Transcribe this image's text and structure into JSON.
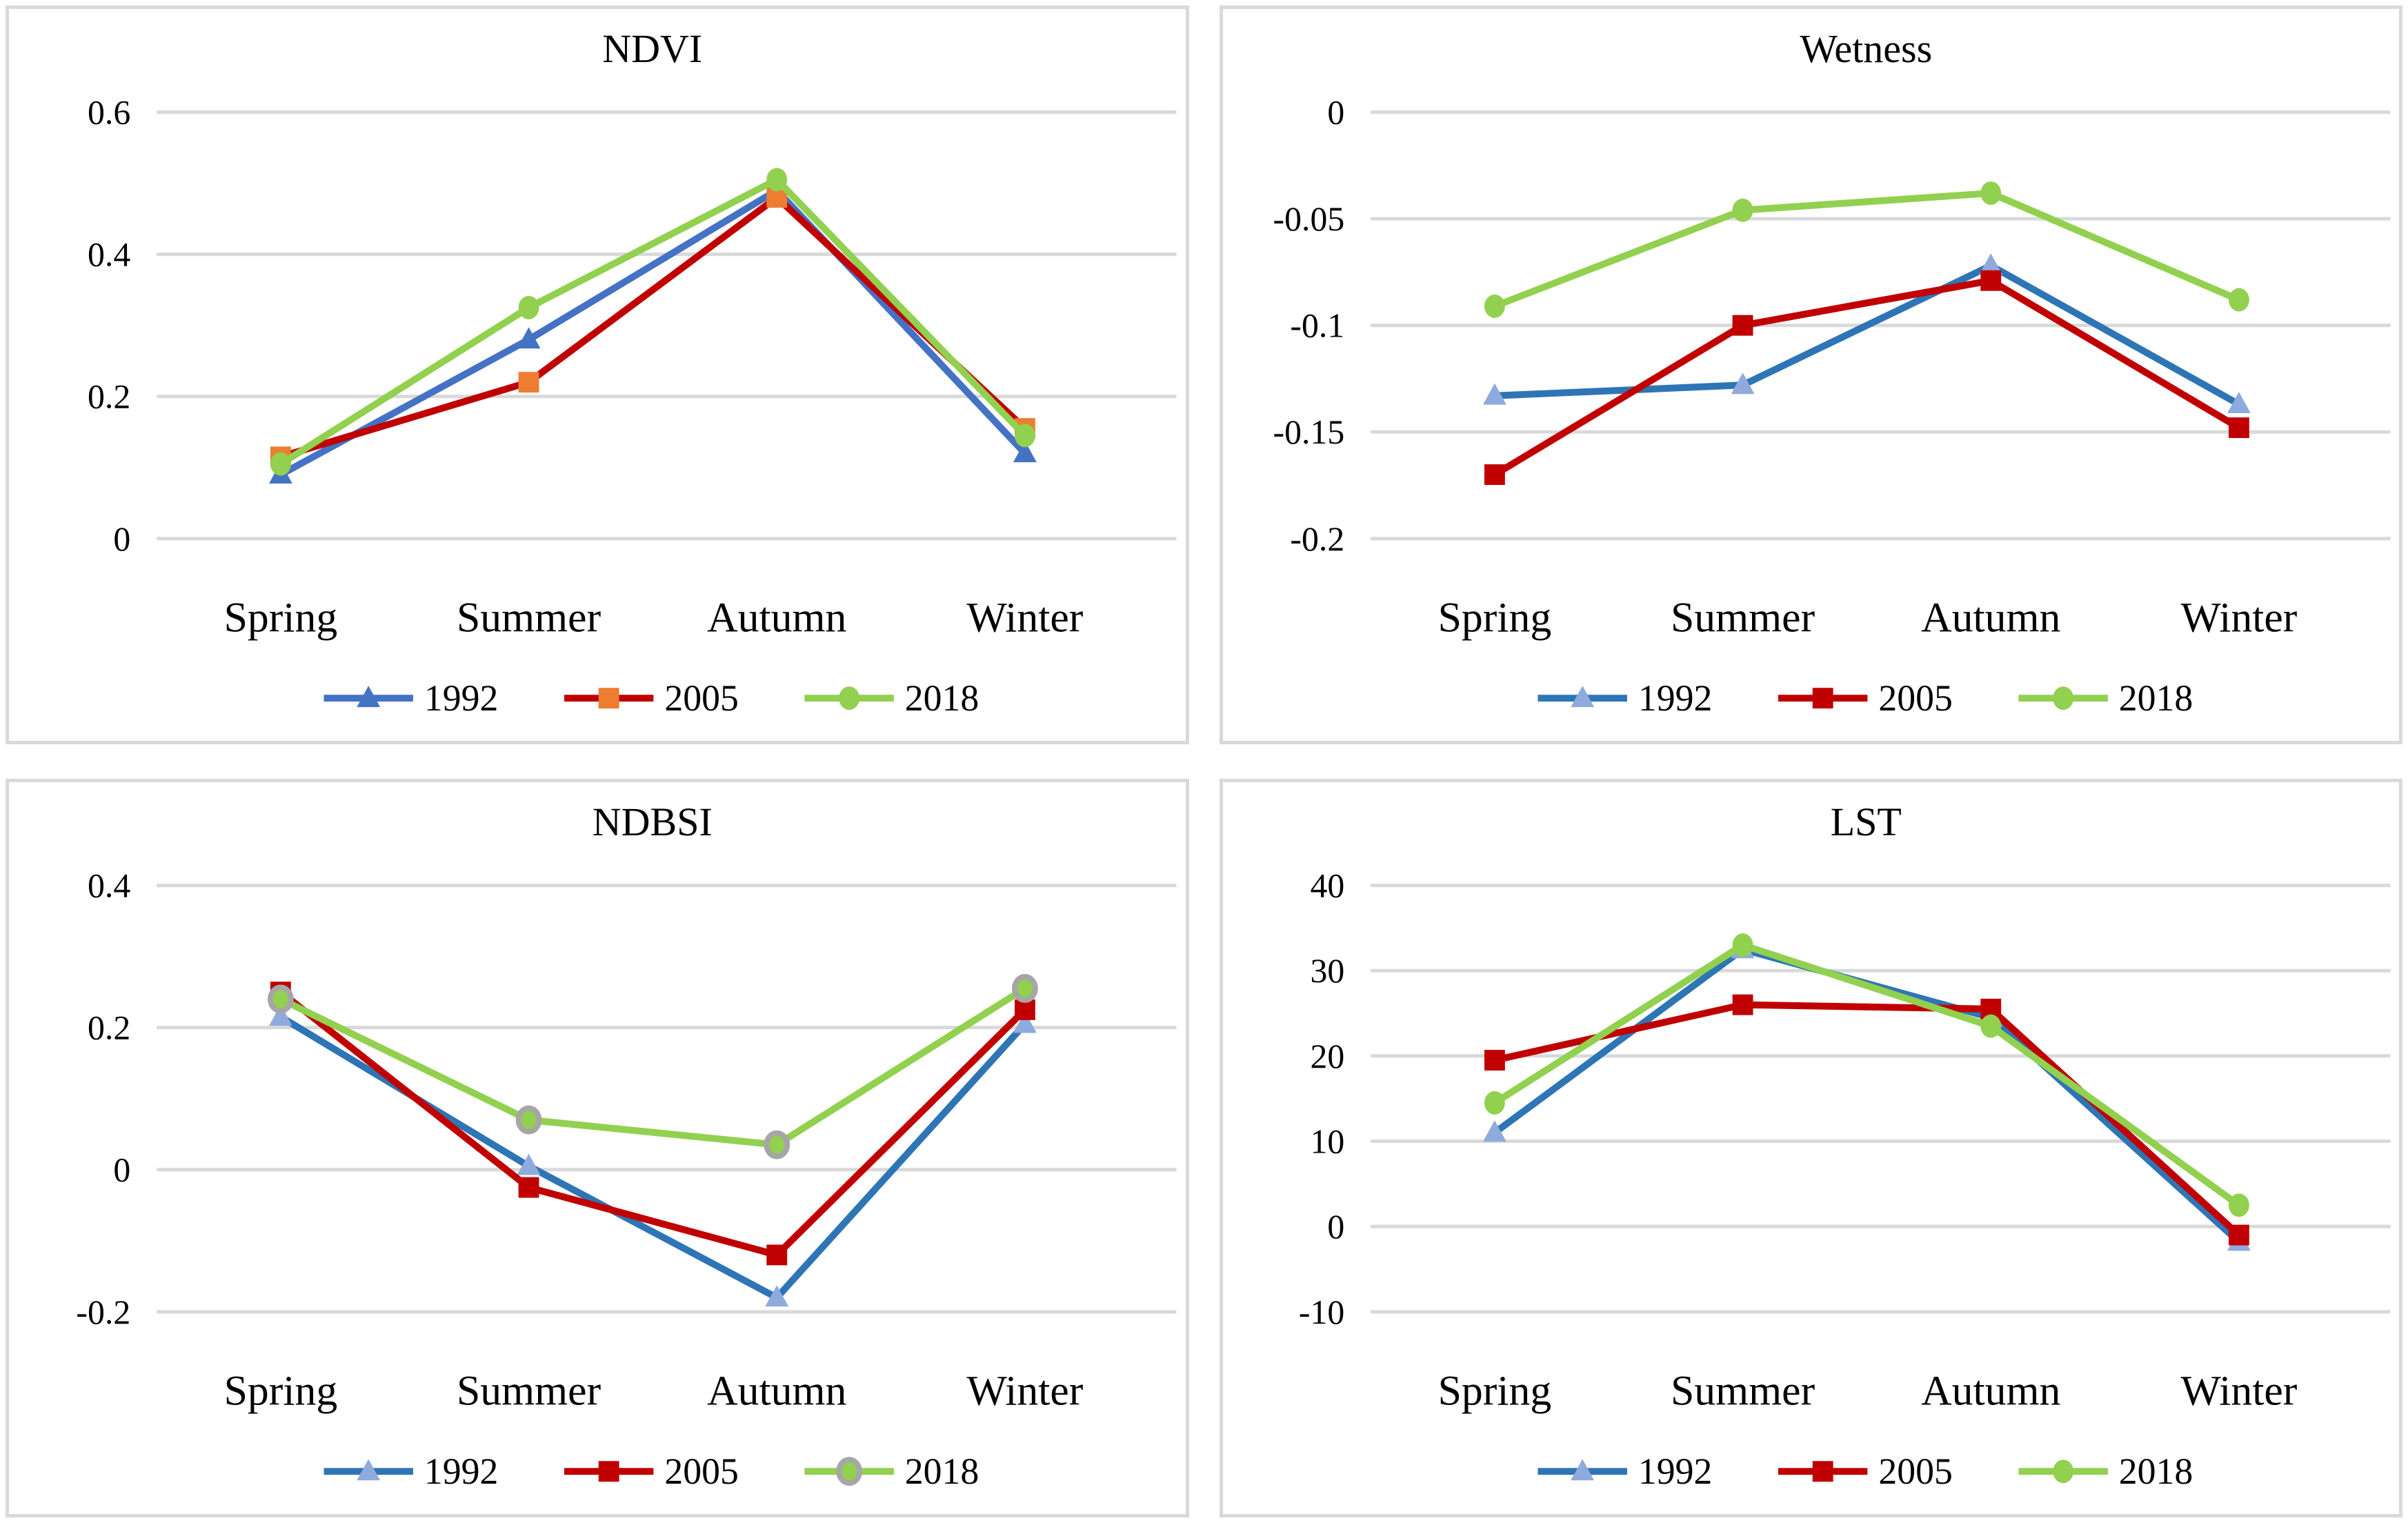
{
  "figure": {
    "background": "#ffffff",
    "panel_border_color": "#D9D9D9",
    "gridline_color": "#D9D9D9"
  },
  "chart_data": [
    {
      "type": "line",
      "title": "NDVI",
      "categories": [
        "Spring",
        "Summer",
        "Autumn",
        "Winter"
      ],
      "y_ticks": [
        0.6,
        0.4,
        0.2,
        0
      ],
      "y_tick_labels": [
        "0.6",
        "0.4",
        "0.2",
        "0"
      ],
      "ylim": [
        0,
        0.6
      ],
      "grid": "horizontal",
      "legend_position": "bottom",
      "series": [
        {
          "name": "1992",
          "values": [
            0.09,
            0.28,
            0.49,
            0.12
          ]
        },
        {
          "name": "2005",
          "values": [
            0.115,
            0.22,
            0.48,
            0.155
          ]
        },
        {
          "name": "2018",
          "values": [
            0.105,
            0.325,
            0.505,
            0.145
          ]
        }
      ]
    },
    {
      "type": "line",
      "title": "Wetness",
      "categories": [
        "Spring",
        "Summer",
        "Autumn",
        "Winter"
      ],
      "y_ticks": [
        0,
        -0.05,
        -0.1,
        -0.15,
        -0.2
      ],
      "y_tick_labels": [
        "0",
        "-0.05",
        "-0.1",
        "-0.15",
        "-0.2"
      ],
      "ylim": [
        -0.2,
        0
      ],
      "grid": "horizontal",
      "legend_position": "bottom",
      "series": [
        {
          "name": "1992",
          "values": [
            -0.133,
            -0.128,
            -0.072,
            -0.137
          ]
        },
        {
          "name": "2005",
          "values": [
            -0.17,
            -0.1,
            -0.079,
            -0.148
          ]
        },
        {
          "name": "2018",
          "values": [
            -0.091,
            -0.046,
            -0.038,
            -0.088
          ]
        }
      ]
    },
    {
      "type": "line",
      "title": "NDBSI",
      "categories": [
        "Spring",
        "Summer",
        "Autumn",
        "Winter"
      ],
      "y_ticks": [
        0.4,
        0.2,
        0,
        -0.2
      ],
      "y_tick_labels": [
        "0.4",
        "0.2",
        "0",
        "-0.2"
      ],
      "ylim": [
        -0.2,
        0.4
      ],
      "grid": "horizontal",
      "legend_position": "bottom",
      "series": [
        {
          "name": "1992",
          "values": [
            0.215,
            0.005,
            -0.18,
            0.205
          ]
        },
        {
          "name": "2005",
          "values": [
            0.25,
            -0.025,
            -0.12,
            0.225
          ]
        },
        {
          "name": "2018",
          "values": [
            0.24,
            0.07,
            0.035,
            0.255
          ]
        }
      ]
    },
    {
      "type": "line",
      "title": "LST",
      "categories": [
        "Spring",
        "Summer",
        "Autumn",
        "Winter"
      ],
      "y_ticks": [
        40,
        30,
        20,
        10,
        0,
        -10
      ],
      "y_tick_labels": [
        "40",
        "30",
        "20",
        "10",
        "0",
        "-10"
      ],
      "ylim": [
        -10,
        40
      ],
      "grid": "horizontal",
      "legend_position": "bottom",
      "series": [
        {
          "name": "1992",
          "values": [
            11,
            32.5,
            24.5,
            -1.8
          ]
        },
        {
          "name": "2005",
          "values": [
            19.5,
            26,
            25.5,
            -1
          ]
        },
        {
          "name": "2018",
          "values": [
            14.5,
            33,
            23.5,
            2.5
          ]
        }
      ]
    }
  ],
  "styles": {
    "panels": [
      {
        "series": [
          {
            "line": "#4472C4",
            "marker": "triangle",
            "fill": "#4472C4"
          },
          {
            "line": "#C00000",
            "marker": "square",
            "fill": "#ED7D31"
          },
          {
            "line": "#92D050",
            "marker": "circle",
            "fill": "#92D050"
          }
        ]
      },
      {
        "series": [
          {
            "line": "#2E75B6",
            "marker": "triangle",
            "fill": "#8FAADC"
          },
          {
            "line": "#C00000",
            "marker": "square",
            "fill": "#C00000"
          },
          {
            "line": "#92D050",
            "marker": "circle",
            "fill": "#92D050"
          }
        ]
      },
      {
        "series": [
          {
            "line": "#2E75B6",
            "marker": "triangle",
            "fill": "#8FAADC"
          },
          {
            "line": "#C00000",
            "marker": "square",
            "fill": "#C00000"
          },
          {
            "line": "#92D050",
            "marker": "circle",
            "fill": "#92D050",
            "stroke": "#A6A6A6",
            "strokeW": 8
          }
        ]
      },
      {
        "series": [
          {
            "line": "#2E75B6",
            "marker": "triangle",
            "fill": "#8FAADC"
          },
          {
            "line": "#C00000",
            "marker": "square",
            "fill": "#C00000"
          },
          {
            "line": "#92D050",
            "marker": "circle",
            "fill": "#92D050"
          }
        ]
      }
    ]
  }
}
